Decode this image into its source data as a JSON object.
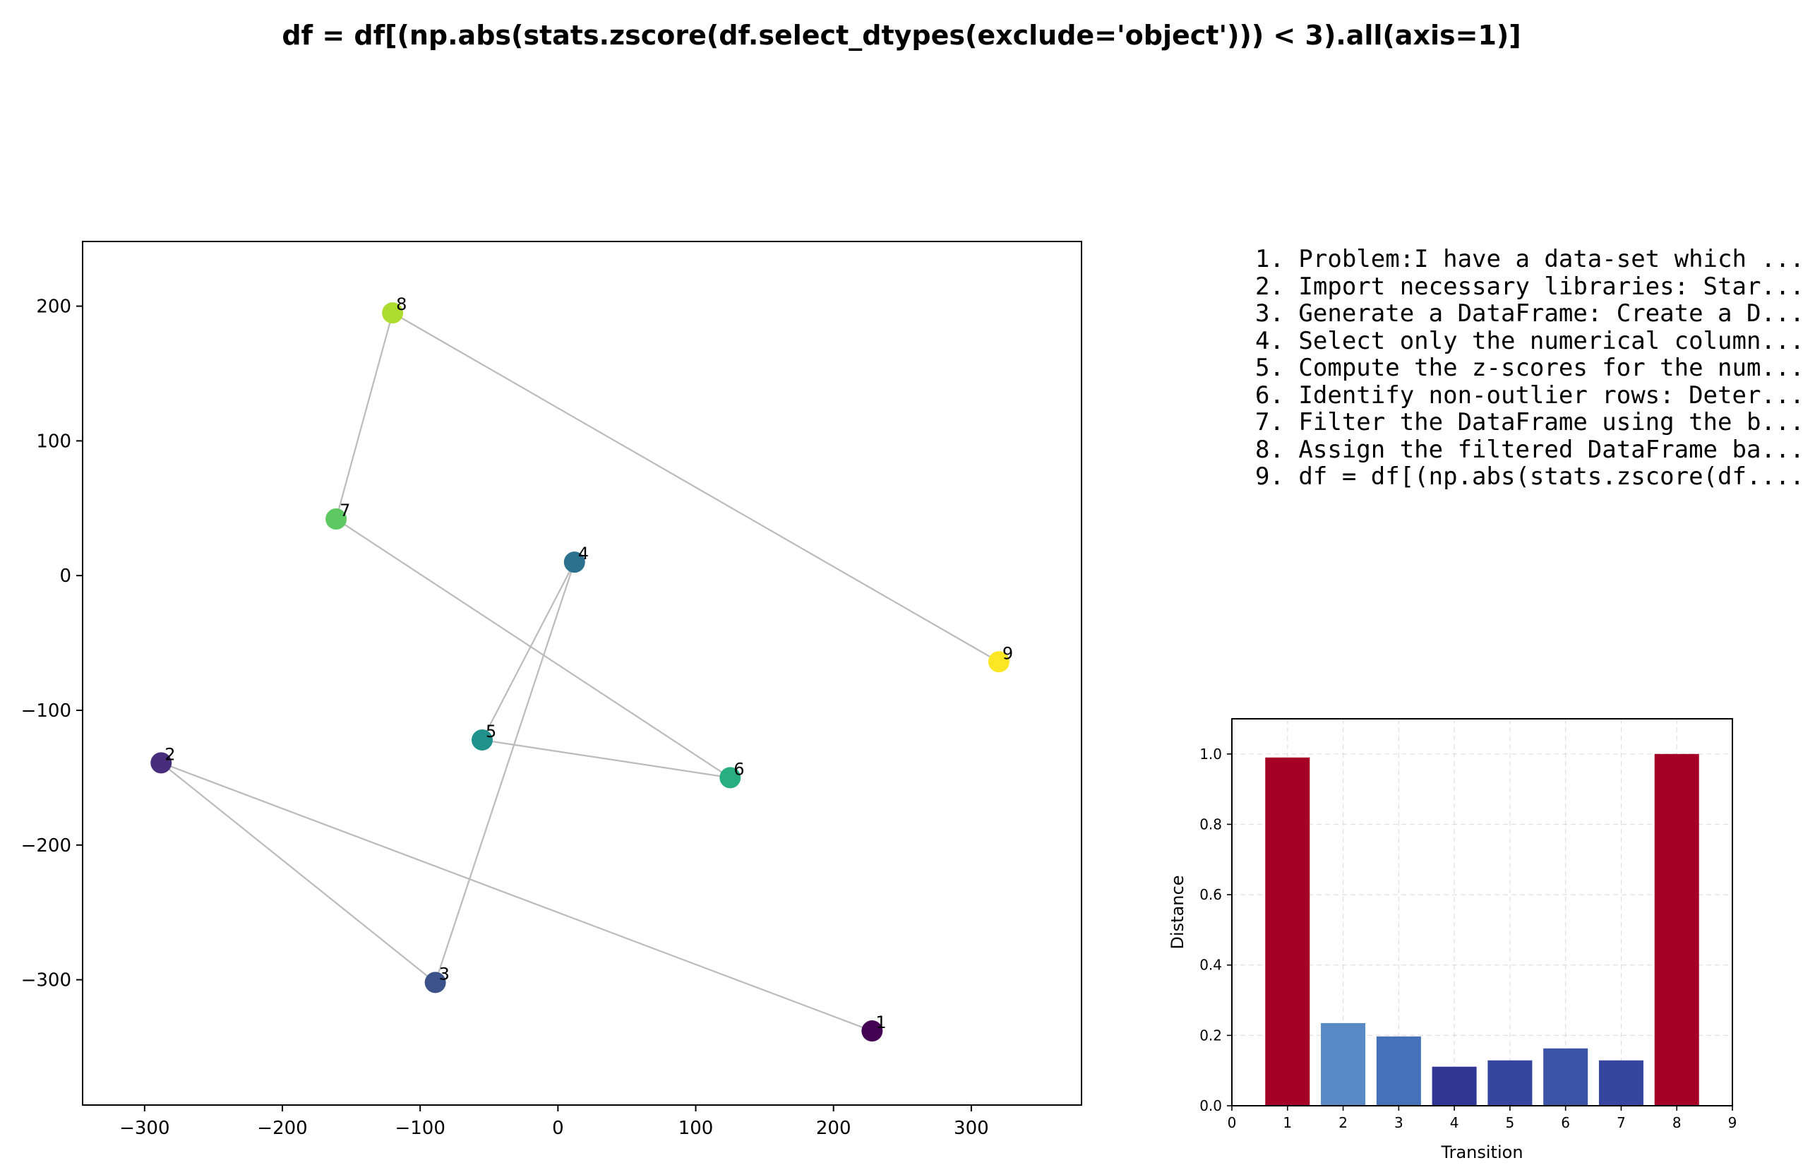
{
  "title": "df = df[(np.abs(stats.zscore(df.select_dtypes(exclude='object'))) < 3).all(axis=1)]",
  "steps": [
    "1. Problem:I have a data-set which ...",
    "2. Import necessary libraries: Star...",
    "3. Generate a DataFrame: Create a D...",
    "4. Select only the numerical column...",
    "5. Compute the z-scores for the num...",
    "6. Identify non-outlier rows: Deter...",
    "7. Filter the DataFrame using the b...",
    "8. Assign the filtered DataFrame ba...",
    "9. df = df[(np.abs(stats.zscore(df...."
  ],
  "chart_data": [
    {
      "type": "scatter",
      "title": "",
      "xlabel": "",
      "ylabel": "",
      "xlim": [
        -345,
        380
      ],
      "ylim": [
        -393,
        248
      ],
      "xticks": [
        -300,
        -200,
        -100,
        0,
        100,
        200,
        300
      ],
      "yticks": [
        -300,
        -200,
        -100,
        0,
        100,
        200
      ],
      "xtick_labels": [
        "−300",
        "−200",
        "−100",
        "0",
        "100",
        "200",
        "300"
      ],
      "ytick_labels": [
        "−300",
        "−200",
        "−100",
        "0",
        "100",
        "200"
      ],
      "grid": false,
      "connect_in_order": true,
      "line_color": "#bbbbbb",
      "points": [
        {
          "label": "1",
          "x": 228,
          "y": -338,
          "color": "#440154"
        },
        {
          "label": "2",
          "x": -288,
          "y": -139,
          "color": "#472d7b"
        },
        {
          "label": "3",
          "x": -89,
          "y": -302,
          "color": "#3b528b"
        },
        {
          "label": "4",
          "x": 12,
          "y": 10,
          "color": "#2c728e"
        },
        {
          "label": "5",
          "x": -55,
          "y": -122,
          "color": "#21918c"
        },
        {
          "label": "6",
          "x": 125,
          "y": -150,
          "color": "#28ae80"
        },
        {
          "label": "7",
          "x": -161,
          "y": 42,
          "color": "#5ec962"
        },
        {
          "label": "8",
          "x": -120,
          "y": 195,
          "color": "#addc30"
        },
        {
          "label": "9",
          "x": 320,
          "y": -64,
          "color": "#fde725"
        }
      ]
    },
    {
      "type": "bar",
      "title": "",
      "xlabel": "Transition",
      "ylabel": "Distance",
      "xlim": [
        0,
        9
      ],
      "ylim": [
        0,
        1.1
      ],
      "xticks": [
        0,
        1,
        2,
        3,
        4,
        5,
        6,
        7,
        8,
        9
      ],
      "yticks": [
        0.0,
        0.2,
        0.4,
        0.6,
        0.8,
        1.0
      ],
      "ytick_labels": [
        "0.0",
        "0.2",
        "0.4",
        "0.6",
        "0.8",
        "1.0"
      ],
      "grid": true,
      "categories": [
        "1",
        "2",
        "3",
        "4",
        "5",
        "6",
        "7",
        "8"
      ],
      "values": [
        0.99,
        0.235,
        0.197,
        0.111,
        0.129,
        0.163,
        0.129,
        1.0
      ],
      "colors": [
        "#a50026",
        "#5a8ac6",
        "#4471b8",
        "#313695",
        "#3646a0",
        "#3a55a8",
        "#3646a0",
        "#a50026"
      ]
    }
  ]
}
